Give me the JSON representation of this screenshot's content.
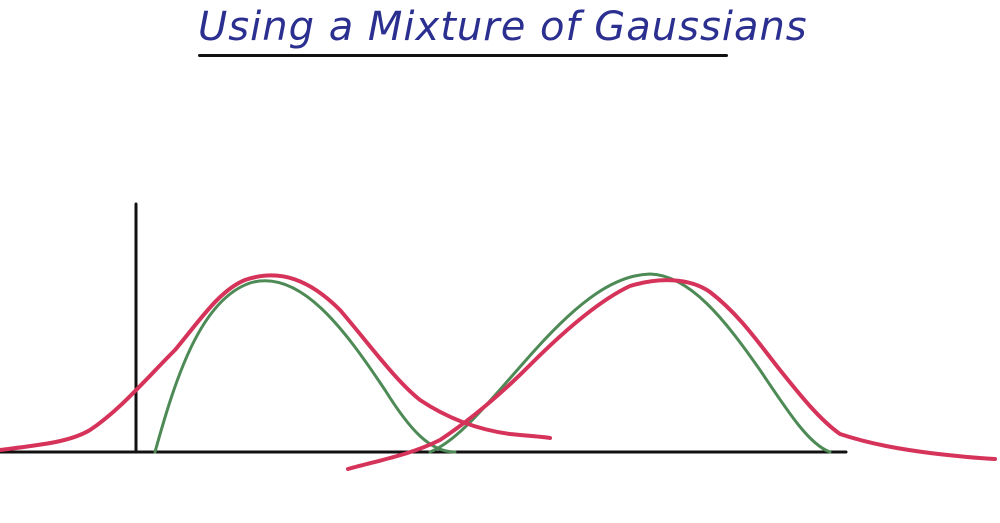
{
  "title": "Using a Mixture of Gaussians",
  "colors": {
    "title": "#2b2f8f",
    "axes": "#111111",
    "fitted_curves": "#d6335a",
    "true_gaussians": "#4d8a55"
  }
}
